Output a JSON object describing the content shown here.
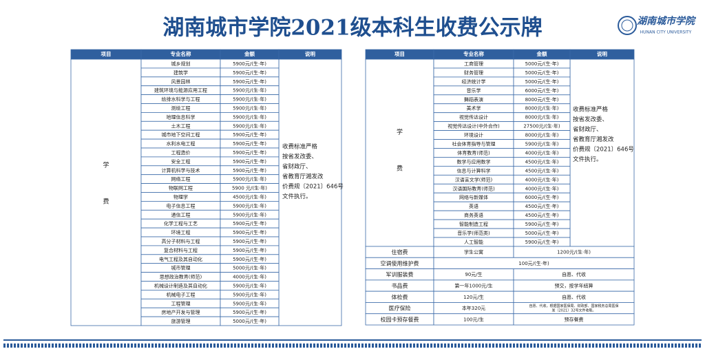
{
  "header": {
    "title": "湖南城市学院2021级本科生收费公示牌",
    "logo_name": "湖南城市学院",
    "logo_en": "HUNAN CITY UNIVERSITY"
  },
  "left_table": {
    "columns": [
      "项目",
      "专业名称",
      "金额",
      "说明"
    ],
    "item": [
      "学",
      "费"
    ],
    "rows": [
      [
        "城乡规划",
        "5900元/(生·年)"
      ],
      [
        "建筑学",
        "5900元/(生·年)"
      ],
      [
        "风景园林",
        "5900元/(生·年)"
      ],
      [
        "建筑环境与能源应用工程",
        "5900元/(生·年)"
      ],
      [
        "给排水科学与工程",
        "5900元/(生·年)"
      ],
      [
        "测绘工程",
        "5900元/(生·年)"
      ],
      [
        "地理信息科学",
        "5900元/(生·年)"
      ],
      [
        "土木工程",
        "5900元/(生·年)"
      ],
      [
        "城市地下空间工程",
        "5900元/(生·年)"
      ],
      [
        "水利水电工程",
        "5900元/(生·年)"
      ],
      [
        "工程造价",
        "5900元/(生·年)"
      ],
      [
        "安全工程",
        "5900元/(生·年)"
      ],
      [
        "计算机科学与技术",
        "5900元/(生·年)"
      ],
      [
        "网络工程",
        "5900元/(生·年)"
      ],
      [
        "物联网工程",
        "5900 元/(生·年)"
      ],
      [
        "物理学",
        "4500元/(生·年)"
      ],
      [
        "电子信息工程",
        "5900元/(生·年)"
      ],
      [
        "通信工程",
        "5900元/(生·年)"
      ],
      [
        "化学工程与工艺",
        "5900元/(生·年)"
      ],
      [
        "环境工程",
        "5900元/(生·年)"
      ],
      [
        "高分子材料与工程",
        "5900元/(生·年)"
      ],
      [
        "复合材料与工程",
        "5900元/(生·年)"
      ],
      [
        "电气工程及其自动化",
        "5900元/(生·年)"
      ],
      [
        "城市管理",
        "5000元/(生·年)"
      ],
      [
        "思想政治教育(师范)",
        "4000元/(生·年)"
      ],
      [
        "机械设计制造及其自动化",
        "5900元/(生·年)"
      ],
      [
        "机械电子工程",
        "5900元/(生·年)"
      ],
      [
        "工程管理",
        "5900元/(生·年)"
      ],
      [
        "房地产开发与管理",
        "5900元/(生·年)"
      ],
      [
        "旅游管理",
        "5000元/(生·年)"
      ]
    ],
    "note": [
      "收费标准严格",
      "按省发改委、",
      "省财政厅、",
      "省教育厅湘发改",
      "价费规〔2021〕646号",
      "文件执行。"
    ]
  },
  "right_table": {
    "columns": [
      "项目",
      "专业名称",
      "金额",
      "说明"
    ],
    "item": [
      "学",
      "费"
    ],
    "rows": [
      [
        "工商管理",
        "5000元/(生·年)"
      ],
      [
        "财务管理",
        "5000元/(生·年)"
      ],
      [
        "经济统计学",
        "5000元/(生·年)"
      ],
      [
        "音乐学",
        "6000元/(生·年)"
      ],
      [
        "舞蹈表演",
        "8000元/(生·年)"
      ],
      [
        "美术学",
        "8000元/(生·年)"
      ],
      [
        "视觉传达设计",
        "8000元/(生·年)"
      ],
      [
        "视觉传达设计(中外合作)",
        "27500元/(生·年)"
      ],
      [
        "环境设计",
        "8000元/(生·年)"
      ],
      [
        "社会体育指导与管理",
        "5900元/(生·年)"
      ],
      [
        "体育教育(师范)",
        "4000元/(生·年)"
      ],
      [
        "数学与应用数学",
        "4500元/(生·年)"
      ],
      [
        "信息与计算科学",
        "4500元/(生·年)"
      ],
      [
        "汉语言文学(师范)",
        "4000元/(生·年)"
      ],
      [
        "汉语国际教育(师范)",
        "4000元/(生·年)"
      ],
      [
        "网络与新媒体",
        "6000元/(生·年)"
      ],
      [
        "英语",
        "4500元/(生·年)"
      ],
      [
        "商务英语",
        "4500元/(生·年)"
      ],
      [
        "智能制造工程",
        "5900元/(生·年)"
      ],
      [
        "音乐学(师范类)",
        "5000元/(生·年)"
      ],
      [
        "人工智能",
        "5900元/(生·年)"
      ]
    ],
    "note": [
      "收费标准严格",
      "按省发改委、",
      "省财政厅、",
      "省教育厅湘发改",
      "价费规〔2021〕646号",
      "文件执行。"
    ],
    "other_fees": [
      [
        "住宿费",
        "学生公寓",
        "1200元/(生·年)"
      ],
      [
        "空调使用维护费",
        "100元/(生·年)"
      ],
      [
        "军训服装费",
        "90元/生",
        "自愿、代收"
      ],
      [
        "书品费",
        "第一年1000元/生",
        "预交，按学年结算"
      ],
      [
        "体检费",
        "120元/生",
        "自愿、代收"
      ],
      [
        "医疗保险",
        "本年320元",
        [
          "自愿、代收，根据国家医保局、财政部、国家税务总局医保",
          "发〔2021〕32号文件收取。"
        ]
      ],
      [
        "校园卡预存餐费",
        "100元/生",
        "预存餐费"
      ]
    ]
  }
}
